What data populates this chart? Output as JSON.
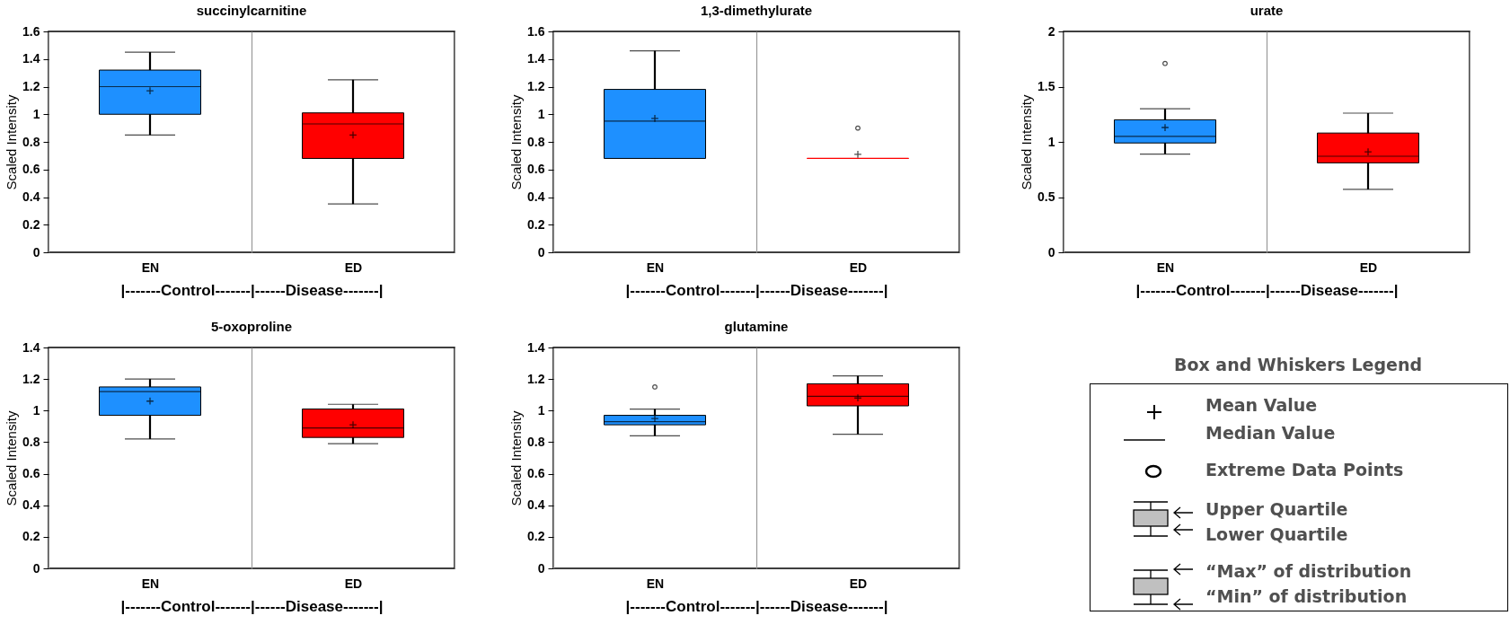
{
  "chart_data": [
    {
      "type": "box",
      "title": "succinylcarnitine",
      "ylabel": "Scaled Intensity",
      "xlabel": "|-------Control-------|------Disease-------|",
      "categories": [
        "EN",
        "ED"
      ],
      "colors": [
        "#1e90ff",
        "#ff0000"
      ],
      "ylim": [
        0,
        1.6
      ],
      "yticks": [
        0,
        0.2,
        0.4,
        0.6,
        0.8,
        1,
        1.2,
        1.4,
        1.6
      ],
      "grid": "x",
      "boxes": [
        {
          "low": 0.85,
          "q1": 1.0,
          "median": 1.2,
          "q3": 1.32,
          "high": 1.45,
          "mean": 1.17
        },
        {
          "low": 0.35,
          "q1": 0.68,
          "median": 0.93,
          "q3": 1.01,
          "high": 1.25,
          "mean": 0.85
        }
      ]
    },
    {
      "type": "box",
      "title": "1,3-dimethylurate",
      "ylabel": "Scaled Intensity",
      "xlabel": "|-------Control-------|------Disease-------|",
      "categories": [
        "EN",
        "ED"
      ],
      "colors": [
        "#1e90ff",
        "#ff0000"
      ],
      "ylim": [
        0,
        1.6
      ],
      "yticks": [
        0,
        0.2,
        0.4,
        0.6,
        0.8,
        1,
        1.2,
        1.4,
        1.6
      ],
      "grid": "x",
      "boxes": [
        {
          "low": 0.68,
          "q1": 0.68,
          "median": 0.95,
          "q3": 1.18,
          "high": 1.46,
          "mean": 0.97
        },
        {
          "low": 0.68,
          "q1": 0.68,
          "median": 0.68,
          "q3": 0.68,
          "high": 0.68,
          "mean": 0.71,
          "outliers": [
            0.9
          ]
        }
      ]
    },
    {
      "type": "box",
      "title": "urate",
      "ylabel": "Scaled Intensity",
      "xlabel": "|-------Control-------|------Disease-------|",
      "categories": [
        "EN",
        "ED"
      ],
      "colors": [
        "#1e90ff",
        "#ff0000"
      ],
      "ylim": [
        0,
        2
      ],
      "yticks": [
        0,
        0.5,
        1,
        1.5,
        2
      ],
      "grid": "x",
      "boxes": [
        {
          "low": 0.89,
          "q1": 0.99,
          "median": 1.05,
          "q3": 1.2,
          "high": 1.3,
          "mean": 1.13,
          "outliers": [
            1.71
          ]
        },
        {
          "low": 0.57,
          "q1": 0.81,
          "median": 0.87,
          "q3": 1.08,
          "high": 1.26,
          "mean": 0.91
        }
      ]
    },
    {
      "type": "box",
      "title": "5-oxoproline",
      "ylabel": "Scaled Intensity",
      "xlabel": "|-------Control-------|------Disease-------|",
      "categories": [
        "EN",
        "ED"
      ],
      "colors": [
        "#1e90ff",
        "#ff0000"
      ],
      "ylim": [
        0,
        1.4
      ],
      "yticks": [
        0,
        0.2,
        0.4,
        0.6,
        0.8,
        1,
        1.2,
        1.4
      ],
      "grid": "x",
      "boxes": [
        {
          "low": 0.82,
          "q1": 0.97,
          "median": 1.12,
          "q3": 1.15,
          "high": 1.2,
          "mean": 1.06
        },
        {
          "low": 0.79,
          "q1": 0.83,
          "median": 0.89,
          "q3": 1.01,
          "high": 1.04,
          "mean": 0.91
        }
      ]
    },
    {
      "type": "box",
      "title": "glutamine",
      "ylabel": "Scaled Intensity",
      "xlabel": "|-------Control-------|------Disease-------|",
      "categories": [
        "EN",
        "ED"
      ],
      "colors": [
        "#1e90ff",
        "#ff0000"
      ],
      "ylim": [
        0,
        1.4
      ],
      "yticks": [
        0,
        0.2,
        0.4,
        0.6,
        0.8,
        1,
        1.2,
        1.4
      ],
      "grid": "x",
      "boxes": [
        {
          "low": 0.84,
          "q1": 0.91,
          "median": 0.93,
          "q3": 0.97,
          "high": 1.01,
          "mean": 0.95,
          "outliers": [
            1.15
          ]
        },
        {
          "low": 0.85,
          "q1": 1.03,
          "median": 1.09,
          "q3": 1.17,
          "high": 1.22,
          "mean": 1.08
        }
      ]
    },
    {
      "type": "other",
      "title": "Box and Whiskers Legend",
      "annotations": [
        "Mean Value",
        "Median Value",
        "Extreme Data Points",
        "Upper Quartile",
        "Lower Quartile",
        "“Max” of distribution",
        "“Min” of distribution"
      ]
    }
  ]
}
